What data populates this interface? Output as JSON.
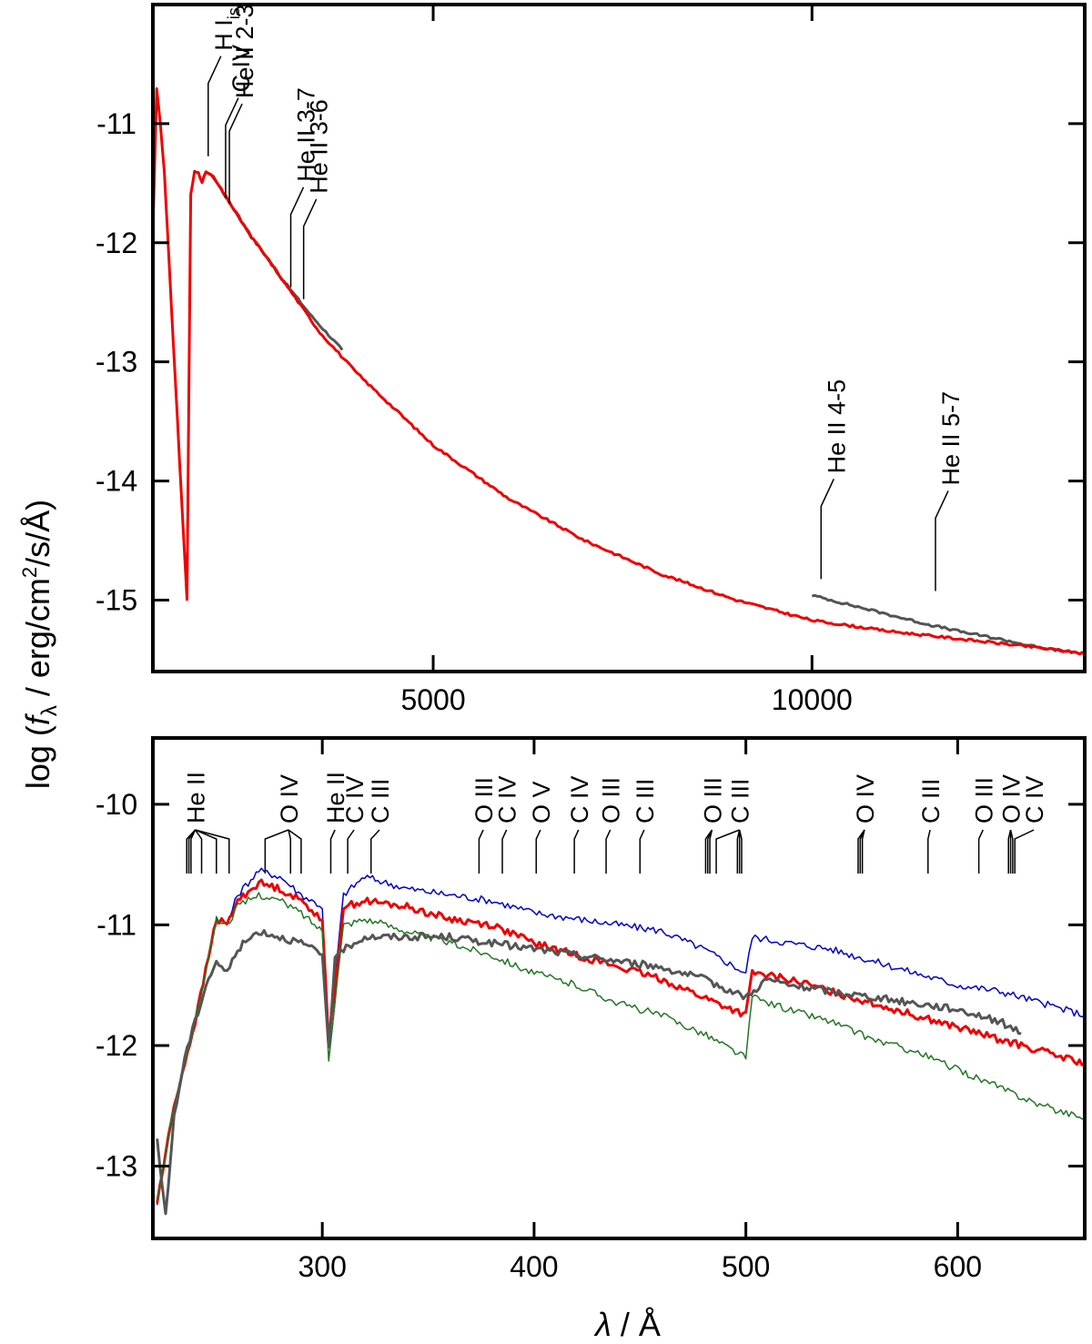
{
  "ylabel": {
    "prefix": "log (",
    "symbol": "f",
    "subscript": "λ",
    "unit_part1": " / erg/cm",
    "superscript": "2",
    "unit_part2": "/s/Å)"
  },
  "xlabel": {
    "symbol": "λ",
    "unit": " / Å"
  },
  "chart_data": [
    {
      "type": "line",
      "panel": "top",
      "xlim": [
        1300,
        13600
      ],
      "ylim": [
        -15.6,
        -10.0
      ],
      "xticks": [
        5000,
        10000
      ],
      "xtick_labels": [
        "5000",
        "10000"
      ],
      "yticks": [
        -11,
        -12,
        -13,
        -14,
        -15
      ],
      "ytick_labels": [
        "-11",
        "-12",
        "-13",
        "-14",
        "-15"
      ],
      "series": [
        {
          "color": "#555555",
          "x": [
            1950,
            2000,
            2100,
            2200,
            2400,
            2600,
            2800,
            3000,
            3400,
            3800
          ],
          "y": [
            -11.5,
            -11.4,
            -11.45,
            -11.55,
            -11.75,
            -11.95,
            -12.12,
            -12.3,
            -12.62,
            -12.9
          ]
        },
        {
          "color": "#555555",
          "x": [
            10000,
            10500,
            11000,
            11500,
            12000,
            12500,
            13000,
            13600
          ],
          "y": [
            -14.96,
            -15.04,
            -15.12,
            -15.2,
            -15.27,
            -15.33,
            -15.4,
            -15.45
          ]
        },
        {
          "color": "#ee0000",
          "x": [
            1300,
            1350,
            1400,
            1450,
            1500,
            1550,
            1600,
            1650,
            1700,
            1750,
            1800,
            1850,
            1900,
            1950,
            2000,
            2100,
            2200,
            2400,
            2600,
            2800,
            3000,
            3500,
            4000,
            5000,
            6000,
            7000,
            8000,
            9000,
            10000,
            11000,
            12000,
            13000,
            13600
          ],
          "y": [
            -11.9,
            -10.7,
            -11.0,
            -11.4,
            -12.0,
            -12.6,
            -13.2,
            -13.8,
            -14.4,
            -15.0,
            -11.6,
            -11.4,
            -11.4,
            -11.5,
            -11.4,
            -11.45,
            -11.55,
            -11.75,
            -11.95,
            -12.12,
            -12.3,
            -12.75,
            -13.1,
            -13.7,
            -14.15,
            -14.5,
            -14.78,
            -15.0,
            -15.17,
            -15.26,
            -15.33,
            -15.4,
            -15.45
          ]
        }
      ],
      "annotations": [
        {
          "text": "H I",
          "sub": "is",
          "x": 2030,
          "tip": -11.35
        },
        {
          "text": "C IV",
          "x": 2260,
          "tip": -11.7
        },
        {
          "text": "He II 2-3",
          "x": 2310,
          "tip": -11.75
        },
        {
          "text": "He II 3-7",
          "x": 3120,
          "tip": -12.45
        },
        {
          "text": "He II 3-6",
          "x": 3290,
          "tip": -12.55
        },
        {
          "text": "He II 4-5",
          "x": 10120,
          "tip": -14.9
        },
        {
          "text": "He II 5-7",
          "x": 11630,
          "tip": -15.0
        }
      ]
    },
    {
      "type": "line",
      "panel": "bottom",
      "xlim": [
        220,
        660
      ],
      "ylim": [
        -13.6,
        -9.45
      ],
      "xticks": [
        300,
        400,
        500,
        600
      ],
      "xtick_labels": [
        "300",
        "400",
        "500",
        "600"
      ],
      "yticks": [
        -10,
        -11,
        -12,
        -13
      ],
      "ytick_labels": [
        "-10",
        "-11",
        "-12",
        "-13"
      ],
      "series": [
        {
          "color": "#0000cc",
          "x": [
            222,
            230,
            240,
            250,
            255,
            260,
            270,
            280,
            290,
            300,
            303,
            310,
            320,
            340,
            360,
            380,
            400,
            420,
            440,
            460,
            480,
            500,
            503,
            520,
            540,
            560,
            580,
            600,
            620,
            640,
            660
          ],
          "y": [
            -13.3,
            -12.5,
            -11.8,
            -10.95,
            -11.0,
            -10.75,
            -10.55,
            -10.6,
            -10.75,
            -10.85,
            -12.0,
            -10.75,
            -10.6,
            -10.7,
            -10.75,
            -10.8,
            -10.9,
            -10.95,
            -11.0,
            -11.05,
            -11.2,
            -11.4,
            -11.1,
            -11.15,
            -11.2,
            -11.3,
            -11.4,
            -11.5,
            -11.55,
            -11.65,
            -11.75
          ]
        },
        {
          "color": "#ee0000",
          "x": [
            222,
            230,
            240,
            250,
            255,
            260,
            270,
            280,
            290,
            300,
            303,
            310,
            320,
            340,
            360,
            380,
            400,
            420,
            440,
            460,
            480,
            500,
            503,
            520,
            540,
            560,
            580,
            600,
            620,
            640,
            660
          ],
          "y": [
            -13.3,
            -12.5,
            -11.8,
            -10.95,
            -11.0,
            -10.8,
            -10.65,
            -10.7,
            -10.8,
            -10.95,
            -12.0,
            -10.85,
            -10.8,
            -10.85,
            -10.95,
            -11.0,
            -11.15,
            -11.25,
            -11.35,
            -11.45,
            -11.6,
            -11.75,
            -11.4,
            -11.45,
            -11.55,
            -11.65,
            -11.75,
            -11.85,
            -11.95,
            -12.05,
            -12.15
          ]
        },
        {
          "color": "#227722",
          "x": [
            222,
            230,
            240,
            250,
            255,
            260,
            270,
            280,
            290,
            300,
            303,
            310,
            320,
            340,
            360,
            380,
            400,
            420,
            440,
            460,
            480,
            500,
            503,
            520,
            540,
            560,
            580,
            600,
            620,
            640,
            660
          ],
          "y": [
            -13.3,
            -12.5,
            -11.8,
            -10.95,
            -11.0,
            -10.85,
            -10.75,
            -10.8,
            -10.9,
            -11.05,
            -12.1,
            -11.0,
            -10.95,
            -11.05,
            -11.15,
            -11.25,
            -11.4,
            -11.5,
            -11.65,
            -11.75,
            -11.9,
            -12.1,
            -11.6,
            -11.7,
            -11.8,
            -11.95,
            -12.05,
            -12.2,
            -12.35,
            -12.5,
            -12.6
          ]
        },
        {
          "color": "#555555",
          "x": [
            222,
            226,
            230,
            235,
            240,
            245,
            250,
            255,
            260,
            270,
            280,
            290,
            300,
            303,
            306,
            310,
            320,
            340,
            360,
            380,
            400,
            420,
            440,
            460,
            480,
            500,
            510,
            520,
            540,
            560,
            580,
            600,
            620,
            630
          ],
          "y": [
            -12.8,
            -13.4,
            -12.6,
            -12.1,
            -11.8,
            -11.5,
            -11.3,
            -11.4,
            -11.2,
            -11.05,
            -11.1,
            -11.15,
            -11.25,
            -12.0,
            -11.3,
            -11.2,
            -11.1,
            -11.1,
            -11.1,
            -11.15,
            -11.2,
            -11.25,
            -11.3,
            -11.35,
            -11.45,
            -11.6,
            -11.45,
            -11.5,
            -11.55,
            -11.6,
            -11.65,
            -11.7,
            -11.8,
            -11.9
          ]
        }
      ],
      "annotations": [
        {
          "text": "He II",
          "x": 240,
          "ticks": [
            236,
            237,
            238,
            243,
            250,
            256
          ]
        },
        {
          "text": "O IV",
          "x": 284,
          "ticks": [
            273,
            285,
            290
          ]
        },
        {
          "text": "He II",
          "x": 306,
          "ticks": [
            304
          ]
        },
        {
          "text": "C IV",
          "x": 315,
          "ticks": [
            312
          ]
        },
        {
          "text": "C III",
          "x": 327,
          "ticks": [
            323
          ]
        },
        {
          "text": "O III",
          "x": 376,
          "ticks": [
            374
          ]
        },
        {
          "text": "C IV",
          "x": 387,
          "ticks": [
            385
          ]
        },
        {
          "text": "O V",
          "x": 403,
          "ticks": [
            401
          ]
        },
        {
          "text": "C IV",
          "x": 421,
          "ticks": [
            419
          ]
        },
        {
          "text": "O III",
          "x": 436,
          "ticks": [
            434
          ]
        },
        {
          "text": "C III",
          "x": 452,
          "ticks": [
            450
          ]
        },
        {
          "text": "O III",
          "x": 484,
          "ticks": [
            481,
            482,
            483
          ]
        },
        {
          "text": "C III",
          "x": 497,
          "ticks": [
            486,
            496,
            497,
            498
          ]
        },
        {
          "text": "O IV",
          "x": 556,
          "ticks": [
            553,
            554,
            555
          ]
        },
        {
          "text": "C III",
          "x": 587,
          "ticks": [
            586
          ]
        },
        {
          "text": "O III",
          "x": 612,
          "ticks": [
            610
          ]
        },
        {
          "text": "O IV",
          "x": 625,
          "ticks": [
            624,
            625,
            626
          ]
        },
        {
          "text": "C IV",
          "x": 636,
          "ticks": [
            627
          ]
        }
      ]
    }
  ]
}
